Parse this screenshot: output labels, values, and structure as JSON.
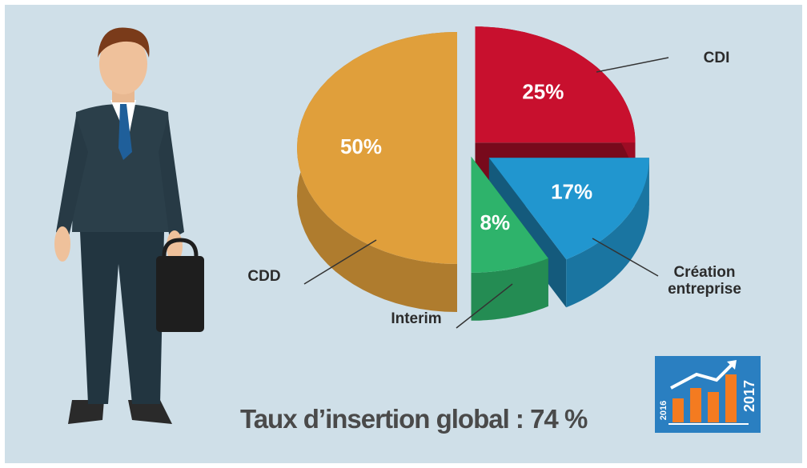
{
  "chart_data": {
    "type": "pie",
    "categories": [
      "CDI",
      "Création entreprise",
      "Interim",
      "CDD"
    ],
    "values": [
      25,
      17,
      8,
      50
    ],
    "value_labels": [
      "25%",
      "17%",
      "8%",
      "50%"
    ],
    "colors": [
      "#c8102e",
      "#2196cf",
      "#2eb36b",
      "#e09f3b"
    ],
    "footer": "Taux d’insertion global : 74 %",
    "annotations": [
      "2016",
      "2017"
    ]
  }
}
